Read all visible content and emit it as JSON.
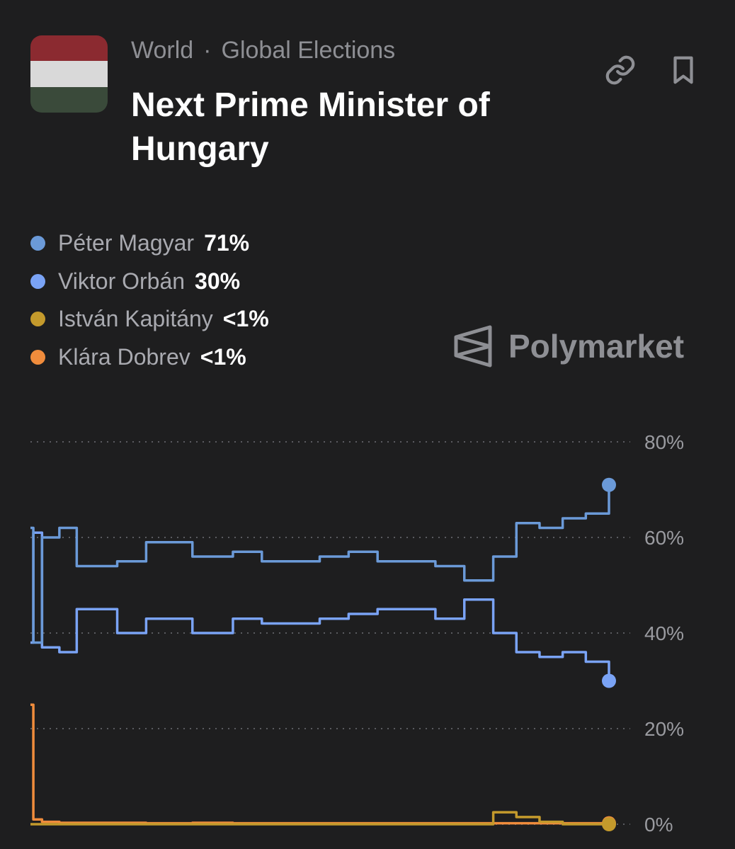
{
  "header": {
    "category": "World",
    "subcategory": "Global Elections",
    "title": "Next Prime Minister of Hungary",
    "flag_colors": [
      "#8b2a30",
      "#d9d9d9",
      "#3a4a3a"
    ]
  },
  "actions": {
    "link_icon": "link-icon",
    "bookmark_icon": "bookmark-icon"
  },
  "brand": {
    "name": "Polymarket",
    "icon": "polymarket-logo-icon"
  },
  "legend": [
    {
      "name": "Péter Magyar",
      "value": "71%",
      "color": "#6b9ad8"
    },
    {
      "name": "Viktor Orbán",
      "value": "30%",
      "color": "#7aa3f5"
    },
    {
      "name": "István Kapitány",
      "value": "<1%",
      "color": "#c49a2c"
    },
    {
      "name": "Klára Dobrev",
      "value": "<1%",
      "color": "#f08c3c"
    }
  ],
  "chart_data": {
    "type": "line",
    "title": "",
    "ylim": [
      0,
      80
    ],
    "yticks": [
      "0%",
      "20%",
      "40%",
      "60%",
      "80%"
    ],
    "grid": true,
    "x": [
      0,
      0.5,
      2,
      5,
      8,
      15,
      20,
      28,
      35,
      40,
      50,
      55,
      60,
      70,
      75,
      80,
      84,
      88,
      92,
      96,
      100
    ],
    "series": [
      {
        "name": "Péter Magyar",
        "color": "#6b9ad8",
        "values": [
          62,
          38,
          60,
          62,
          54,
          55,
          59,
          56,
          57,
          55,
          56,
          57,
          55,
          54,
          51,
          56,
          63,
          62,
          64,
          65,
          71
        ]
      },
      {
        "name": "Viktor Orbán",
        "color": "#7aa3f5",
        "values": [
          38,
          61,
          37,
          36,
          45,
          40,
          43,
          40,
          43,
          42,
          43,
          44,
          45,
          43,
          47,
          40,
          36,
          35,
          36,
          34,
          30
        ]
      },
      {
        "name": "István Kapitány",
        "color": "#c49a2c",
        "values": [
          0,
          0,
          0,
          0,
          0,
          0,
          0,
          0,
          0,
          0,
          0,
          0,
          0,
          0,
          0,
          2.5,
          1.5,
          0.5,
          0,
          0,
          0
        ]
      },
      {
        "name": "Klára Dobrev",
        "color": "#f08c3c",
        "values": [
          25,
          1,
          0.5,
          0.3,
          0.3,
          0.3,
          0.2,
          0.3,
          0.2,
          0.2,
          0.2,
          0.2,
          0.2,
          0.2,
          0.2,
          0.2,
          0.2,
          0.2,
          0.2,
          0.2,
          0.2
        ]
      }
    ]
  }
}
